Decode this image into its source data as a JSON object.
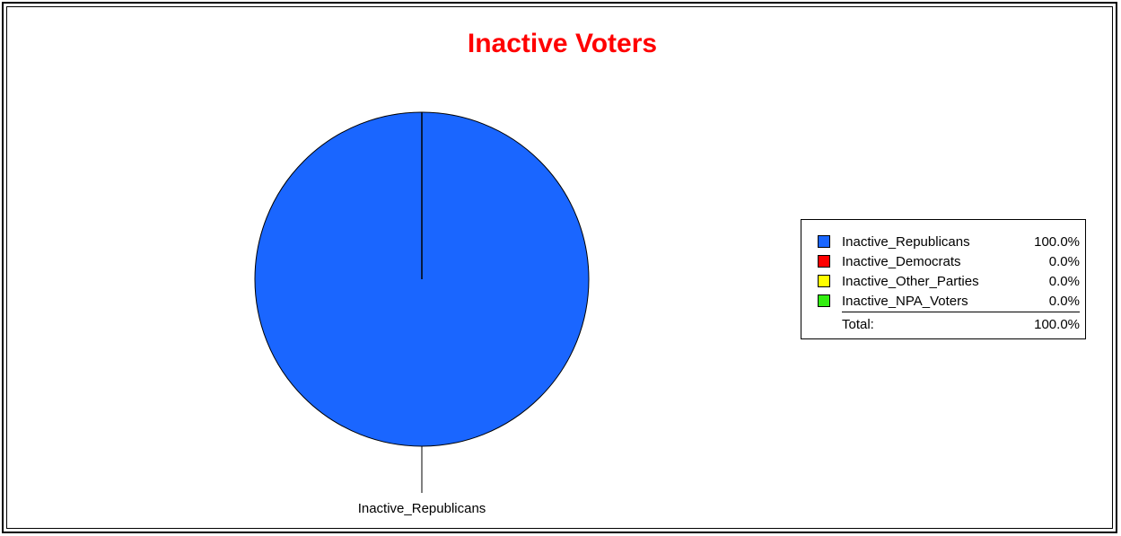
{
  "chart_data": {
    "type": "pie",
    "title": "Inactive Voters",
    "slices": [
      {
        "label": "Inactive_Republicans",
        "value": 100.0,
        "display": "100.0%",
        "color": "#1a66ff"
      },
      {
        "label": "Inactive_Democrats",
        "value": 0.0,
        "display": "0.0%",
        "color": "#ff0000"
      },
      {
        "label": "Inactive_Other_Parties",
        "value": 0.0,
        "display": "0.0%",
        "color": "#ffff00"
      },
      {
        "label": "Inactive_NPA_Voters",
        "value": 0.0,
        "display": "0.0%",
        "color": "#33ee11"
      }
    ],
    "total": {
      "label": "Total:",
      "display": "100.0%"
    },
    "slice_labels": [
      "Inactive_Republicans"
    ],
    "legend_position": "right"
  }
}
